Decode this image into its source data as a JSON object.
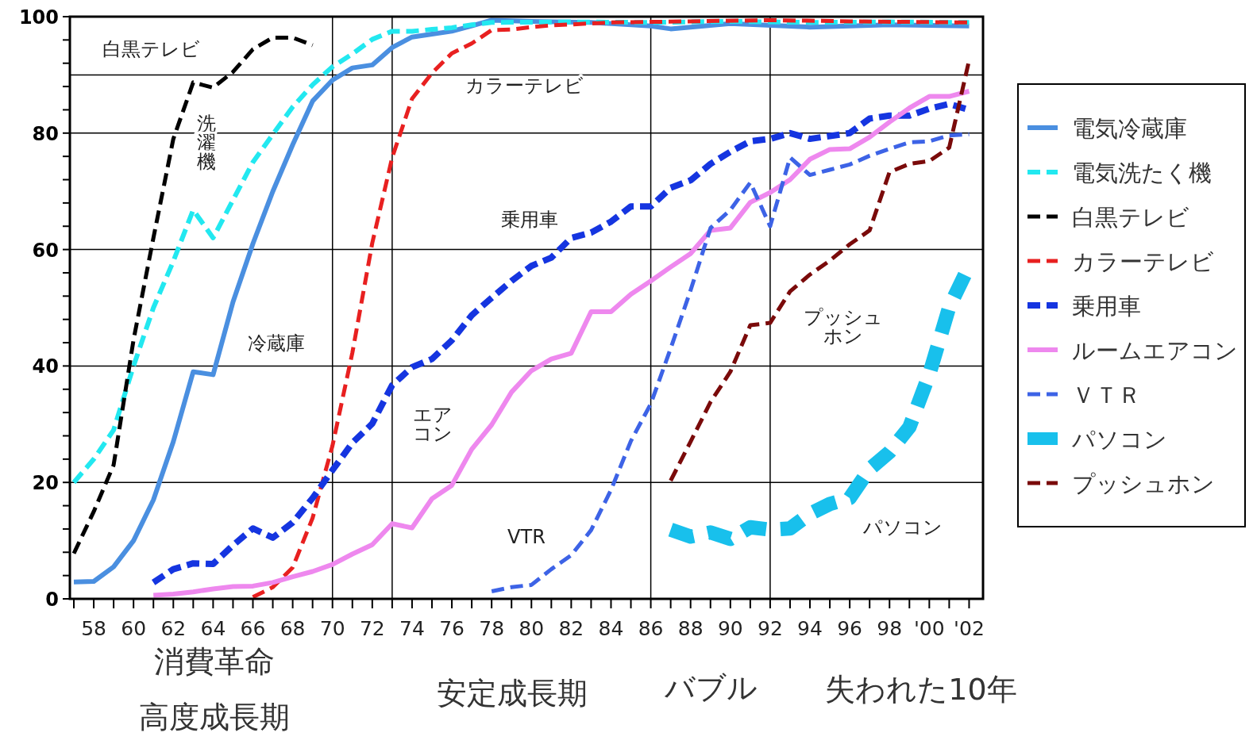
{
  "chart_data": {
    "type": "line",
    "xlim": [
      1956.8,
      2002.7
    ],
    "ylim": [
      0,
      100
    ],
    "xticks": [
      {
        "value": 1957,
        "label": null
      },
      {
        "value": 1958,
        "label": "58"
      },
      {
        "value": 1959,
        "label": null
      },
      {
        "value": 1960,
        "label": "60"
      },
      {
        "value": 1961,
        "label": null
      },
      {
        "value": 1962,
        "label": "62"
      },
      {
        "value": 1963,
        "label": null
      },
      {
        "value": 1964,
        "label": "64"
      },
      {
        "value": 1965,
        "label": null
      },
      {
        "value": 1966,
        "label": "66"
      },
      {
        "value": 1967,
        "label": null
      },
      {
        "value": 1968,
        "label": "68"
      },
      {
        "value": 1969,
        "label": null
      },
      {
        "value": 1970,
        "label": "70"
      },
      {
        "value": 1971,
        "label": null
      },
      {
        "value": 1972,
        "label": "72"
      },
      {
        "value": 1973,
        "label": null
      },
      {
        "value": 1974,
        "label": "74"
      },
      {
        "value": 1975,
        "label": null
      },
      {
        "value": 1976,
        "label": "76"
      },
      {
        "value": 1977,
        "label": null
      },
      {
        "value": 1978,
        "label": "78"
      },
      {
        "value": 1979,
        "label": null
      },
      {
        "value": 1980,
        "label": "80"
      },
      {
        "value": 1981,
        "label": null
      },
      {
        "value": 1982,
        "label": "82"
      },
      {
        "value": 1983,
        "label": null
      },
      {
        "value": 1984,
        "label": "84"
      },
      {
        "value": 1985,
        "label": null
      },
      {
        "value": 1986,
        "label": "86"
      },
      {
        "value": 1987,
        "label": null
      },
      {
        "value": 1988,
        "label": "88"
      },
      {
        "value": 1989,
        "label": null
      },
      {
        "value": 1990,
        "label": "90"
      },
      {
        "value": 1991,
        "label": null
      },
      {
        "value": 1992,
        "label": "92"
      },
      {
        "value": 1993,
        "label": null
      },
      {
        "value": 1994,
        "label": "94"
      },
      {
        "value": 1995,
        "label": null
      },
      {
        "value": 1996,
        "label": "96"
      },
      {
        "value": 1997,
        "label": null
      },
      {
        "value": 1998,
        "label": "98"
      },
      {
        "value": 1999,
        "label": null
      },
      {
        "value": 2000,
        "label": "'00"
      },
      {
        "value": 2001,
        "label": null
      },
      {
        "value": 2002,
        "label": "'02"
      }
    ],
    "yticks": [
      0,
      {
        "value": 4,
        "label": null
      },
      {
        "value": 8,
        "label": null
      },
      {
        "value": 12,
        "label": null
      },
      {
        "value": 16,
        "label": null
      },
      20,
      {
        "value": 24,
        "label": null
      },
      {
        "value": 28,
        "label": null
      },
      {
        "value": 32,
        "label": null
      },
      {
        "value": 36,
        "label": null
      },
      40,
      {
        "value": 44,
        "label": null
      },
      {
        "value": 48,
        "label": null
      },
      {
        "value": 52,
        "label": null
      },
      {
        "value": 56,
        "label": null
      },
      60,
      {
        "value": 64,
        "label": null
      },
      {
        "value": 68,
        "label": null
      },
      {
        "value": 72,
        "label": null
      },
      {
        "value": 76,
        "label": null
      },
      80,
      {
        "value": 84,
        "label": null
      },
      {
        "value": 88,
        "label": null
      },
      {
        "value": 92,
        "label": null
      },
      {
        "value": 96,
        "label": null
      },
      100
    ],
    "grid": "y",
    "legend": "right",
    "ref_lines": [
      {
        "axis": "y",
        "value": 90,
        "color": "#000000"
      },
      {
        "axis": "x",
        "value": 1970,
        "color": "#000000"
      },
      {
        "axis": "x",
        "value": 1973,
        "color": "#000000"
      },
      {
        "axis": "x",
        "value": 1986,
        "color": "#000000"
      },
      {
        "axis": "x",
        "value": 1992,
        "color": "#000000"
      }
    ],
    "series": [
      {
        "name": "電気冷蔵庫",
        "color": "#4a8fe0",
        "line_style": "solid",
        "x": [
          1957,
          1958,
          1959,
          1960,
          1961,
          1962,
          1963,
          1964,
          1965,
          1966,
          1967,
          1968,
          1969,
          1970,
          1971,
          1972,
          1973,
          1974,
          1975,
          1976,
          1977,
          1978,
          1980,
          1983,
          1986,
          1987,
          1990,
          1994,
          1998,
          2002
        ],
        "values": [
          2.9,
          3,
          5.5,
          10,
          17,
          27,
          39,
          38.5,
          51,
          61,
          70,
          78,
          85.5,
          89.1,
          91.2,
          91.7,
          94.7,
          96.5,
          97,
          97.5,
          98.4,
          99.4,
          99.2,
          99,
          98.4,
          97.9,
          98.8,
          98.2,
          98.6,
          98.4
        ]
      },
      {
        "name": "電気洗たく機",
        "color": "#22e8f0",
        "line_style": "dashed",
        "x": [
          1957,
          1958,
          1959,
          1960,
          1961,
          1962,
          1963,
          1964,
          1965,
          1966,
          1967,
          1968,
          1969,
          1970,
          1971,
          1972,
          1973,
          1974,
          1975,
          1976,
          1977,
          1978,
          1982,
          1986,
          1990,
          1994,
          1998,
          2002
        ],
        "values": [
          20,
          24,
          29,
          40,
          50,
          58,
          66.8,
          62,
          68.5,
          75,
          79.8,
          84.5,
          88.3,
          91.4,
          93.6,
          96.1,
          97.5,
          97.5,
          97.8,
          98.1,
          98.6,
          99,
          99.1,
          99,
          99.2,
          99,
          99.1,
          99
        ]
      },
      {
        "name": "白黒テレビ",
        "color": "#000000",
        "line_style": "dashed",
        "x": [
          1957,
          1958,
          1959,
          1960,
          1961,
          1962,
          1963,
          1964,
          1965,
          1966,
          1967,
          1968,
          1969
        ],
        "values": [
          7.8,
          15,
          23,
          44.5,
          62,
          79,
          88.7,
          87.8,
          90.5,
          94.4,
          96.4,
          96.4,
          95.1
        ]
      },
      {
        "name": "カラーテレビ",
        "color": "#e82020",
        "line_style": "dashed",
        "x": [
          1966,
          1967,
          1968,
          1969,
          1970,
          1971,
          1972,
          1973,
          1974,
          1975,
          1976,
          1977,
          1978,
          1979,
          1980,
          1981,
          1984,
          1988,
          1992,
          1996,
          2002
        ],
        "values": [
          0.3,
          2,
          5.4,
          13.9,
          26.3,
          42.3,
          61.1,
          75.8,
          85.9,
          90.3,
          93.7,
          95.4,
          97.7,
          97.8,
          98.2,
          98.5,
          99,
          99.2,
          99.4,
          99.2,
          99
        ]
      },
      {
        "name": "乗用車",
        "color": "#1535e0",
        "line_style": "dashed",
        "x": [
          1961,
          1962,
          1963,
          1964,
          1965,
          1966,
          1967,
          1968,
          1969,
          1970,
          1971,
          1972,
          1973,
          1974,
          1975,
          1976,
          1977,
          1978,
          1979,
          1980,
          1981,
          1982,
          1983,
          1984,
          1985,
          1986,
          1987,
          1988,
          1989,
          1990,
          1991,
          1992,
          1993,
          1994,
          1995,
          1996,
          1997,
          1998,
          1999,
          2000,
          2001,
          2002
        ],
        "values": [
          2.8,
          5.1,
          6.1,
          6,
          9.2,
          12.1,
          10.5,
          13.1,
          17.3,
          22.1,
          26.8,
          30.1,
          36.7,
          39.8,
          41.2,
          44.4,
          48.7,
          51.7,
          54.6,
          57.2,
          58.6,
          62,
          62.9,
          64.8,
          67.4,
          67.4,
          70.6,
          71.9,
          74.7,
          76.8,
          78.6,
          79,
          80,
          79,
          79.5,
          80,
          82.5,
          83,
          83,
          84.2,
          85,
          84
        ]
      },
      {
        "name": "ルームエアコン",
        "color": "#ee88ee",
        "line_style": "solid",
        "x": [
          1961,
          1962,
          1963,
          1964,
          1965,
          1966,
          1967,
          1968,
          1969,
          1970,
          1971,
          1972,
          1973,
          1974,
          1975,
          1976,
          1977,
          1978,
          1979,
          1980,
          1981,
          1982,
          1983,
          1984,
          1985,
          1986,
          1987,
          1988,
          1989,
          1990,
          1991,
          1992,
          1993,
          1994,
          1995,
          1996,
          1997,
          1998,
          1999,
          2000,
          2001,
          2002
        ],
        "values": [
          0.6,
          0.8,
          1.2,
          1.7,
          2.1,
          2.2,
          2.8,
          3.8,
          4.7,
          5.9,
          7.7,
          9.3,
          12.9,
          12.2,
          17.2,
          19.5,
          25.7,
          29.9,
          35.5,
          39.2,
          41.2,
          42.2,
          49.3,
          49.3,
          52.3,
          54.6,
          57,
          59.3,
          63.3,
          63.7,
          68.1,
          69.8,
          72,
          75.5,
          77.2,
          77.3,
          79.3,
          81.9,
          84.3,
          86.3,
          86.3,
          87.2
        ]
      },
      {
        "name": "ＶＴＲ",
        "color": "#3d63e6",
        "line_style": "dashed",
        "x": [
          1978,
          1979,
          1980,
          1981,
          1982,
          1983,
          1984,
          1985,
          1986,
          1987,
          1988,
          1989,
          1990,
          1991,
          1992,
          1993,
          1994,
          1995,
          1996,
          1997,
          1998,
          1999,
          2000,
          2001,
          2002
        ],
        "values": [
          1.3,
          2,
          2.4,
          5.1,
          7.5,
          11.8,
          18.7,
          27.1,
          33.5,
          43,
          53,
          63.7,
          66.8,
          71.5,
          64,
          75.8,
          72.8,
          73.7,
          74.6,
          76.1,
          77.3,
          78.4,
          78.6,
          79.6,
          79.8
        ]
      },
      {
        "name": "パソコン",
        "color": "#18c0ec",
        "line_style": "dashed",
        "x": [
          1987,
          1988,
          1989,
          1990,
          1991,
          1992,
          1993,
          1994,
          1995,
          1996,
          1997,
          1998,
          1999,
          2000,
          2001,
          2002
        ],
        "values": [
          11.9,
          10.7,
          11.4,
          10.3,
          12.3,
          11.9,
          12.1,
          14.6,
          16.3,
          17.3,
          22.3,
          25.2,
          29.5,
          38.6,
          50.1,
          57.2
        ]
      },
      {
        "name": "プッシュホン",
        "color": "#7a0a0a",
        "line_style": "dashed",
        "x": [
          1987,
          1988,
          1989,
          1990,
          1991,
          1992,
          1993,
          1994,
          1995,
          1996,
          1997,
          1998,
          1999,
          2000,
          2001,
          2002
        ],
        "values": [
          20.3,
          27,
          33.8,
          39,
          47,
          47.4,
          52.8,
          55.7,
          58.1,
          60.9,
          63.3,
          73.3,
          74.7,
          75.2,
          77.5,
          92.5
        ]
      }
    ],
    "annotations": [
      "白黒テレビ",
      "洗濯機",
      "冷蔵庫",
      "カラーテレビ",
      "乗用車",
      "エアコン",
      "VTR",
      "プッシュホン",
      "パソコン",
      "消費革命",
      "高度成長期",
      "安定成長期",
      "バブル",
      "失われた10年"
    ]
  }
}
